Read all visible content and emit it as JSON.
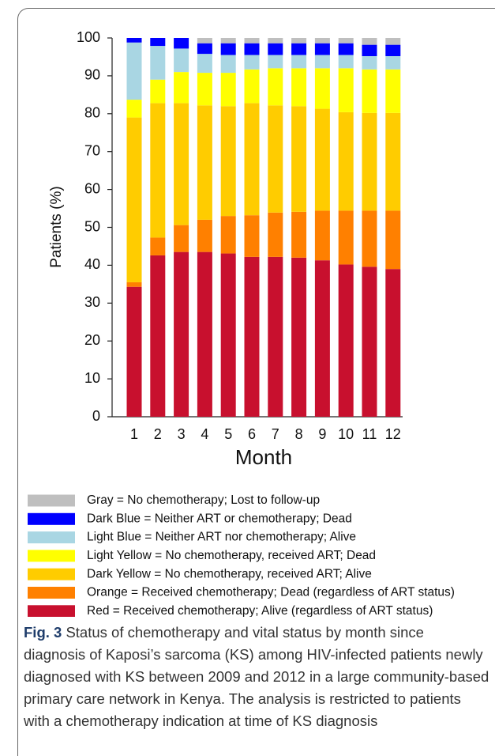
{
  "chart_data": {
    "type": "stacked_bar",
    "y_label": "Patients (%)",
    "x_label": "Month",
    "categories": [
      "1",
      "2",
      "3",
      "4",
      "5",
      "6",
      "7",
      "8",
      "9",
      "10",
      "11",
      "12"
    ],
    "ylim": [
      0,
      100
    ],
    "yticks": [
      0,
      10,
      20,
      30,
      40,
      50,
      60,
      70,
      80,
      90,
      100
    ],
    "series": [
      {
        "name": "Red = Received chemotherapy; Alive (regardless of ART status)",
        "color": "#c8102e",
        "values": [
          34.3,
          42.6,
          43.5,
          43.5,
          43.1,
          42.2,
          42.2,
          42.0,
          41.3,
          40.2,
          39.6,
          39.0
        ]
      },
      {
        "name": "Orange = Received chemotherapy; Dead (regardless of ART status)",
        "color": "#ff8000",
        "values": [
          1.2,
          4.7,
          7.1,
          8.5,
          9.9,
          11.0,
          11.7,
          12.1,
          13.1,
          14.2,
          14.8,
          15.4
        ]
      },
      {
        "name": "Dark Yellow = No chemotherapy, received ART; Alive",
        "color": "#ffcc00",
        "values": [
          43.5,
          35.5,
          32.2,
          30.2,
          29.0,
          29.6,
          28.3,
          27.9,
          26.9,
          26.0,
          25.8,
          25.8
        ]
      },
      {
        "name": "Light Yellow = No chemotherapy, received ART; Dead",
        "color": "#ffff00",
        "values": [
          4.7,
          6.2,
          8.2,
          8.6,
          8.8,
          8.9,
          9.8,
          10.0,
          10.7,
          11.6,
          11.5,
          11.5
        ]
      },
      {
        "name": "Light Blue = Neither ART nor chemotherapy; Alive",
        "color": "#a9d6e3",
        "values": [
          15.1,
          8.9,
          6.2,
          5.0,
          4.7,
          3.8,
          3.5,
          3.5,
          3.5,
          3.5,
          3.5,
          3.5
        ]
      },
      {
        "name": "Dark Blue = Neither ART or chemotherapy; Dead",
        "color": "#0000ff",
        "values": [
          1.2,
          2.1,
          2.8,
          2.8,
          3.1,
          3.1,
          3.1,
          3.1,
          3.1,
          3.1,
          3.0,
          3.0
        ]
      },
      {
        "name": "Gray = No chemotherapy; Lost to follow-up",
        "color": "#bfbfbf",
        "values": [
          0,
          0,
          0,
          1.4,
          1.4,
          1.4,
          1.4,
          1.4,
          1.4,
          1.4,
          1.8,
          1.8
        ]
      }
    ]
  },
  "caption": {
    "label": "Fig. 3",
    "text": "Status of chemotherapy and vital status by month since diagnosis of Kaposi’s sarcoma (KS) among HIV-infected patients newly diagnosed with KS between 2009 and 2012 in a large community-based primary care network in Kenya. The analysis is restricted to patients with a chemotherapy indication at time of KS diagnosis"
  }
}
